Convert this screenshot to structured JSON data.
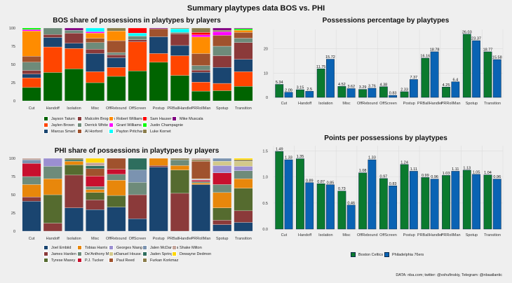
{
  "title": "Summary playtypes data BOS vs. PHI",
  "caption": "DATA: nba.com; twitter: @vshufinskiy, Telegram: @nbaatlantic",
  "chart_data": [
    {
      "id": "bos_share",
      "type": "bar",
      "stacked": true,
      "title": "BOS share of possessions in playtypes by players",
      "xlabel": "",
      "ylabel": "",
      "ylim": [
        0,
        100
      ],
      "yticks": [
        "0",
        "25",
        "50",
        "75",
        "100"
      ],
      "categories": [
        "Cut",
        "Handoff",
        "Isolation",
        "Misc",
        "OffRebound",
        "OffScreen",
        "Postup",
        "PRBallHandler",
        "PRRollMan",
        "Spotup",
        "Transition"
      ],
      "legend": "bottom",
      "series": [
        {
          "name": "Jayson Tatum",
          "color": "#006400",
          "values": [
            18,
            39,
            44,
            25,
            33,
            41,
            53,
            35,
            13,
            14,
            20
          ]
        },
        {
          "name": "Jaylen Brown",
          "color": "#ff4500",
          "values": [
            13,
            35,
            28,
            15,
            12,
            40,
            12,
            27,
            12,
            10,
            20
          ]
        },
        {
          "name": "Marcus Smart",
          "color": "#1a4570",
          "values": [
            5,
            13,
            7,
            25,
            13,
            0,
            23,
            14,
            13,
            22,
            17
          ]
        },
        {
          "name": "Malcolm Brogdon",
          "color": "#8b3a3a",
          "values": [
            5,
            4,
            14,
            6,
            4,
            3,
            0,
            16,
            3,
            16,
            23
          ]
        },
        {
          "name": "Derrick White",
          "color": "#6e8b7a",
          "values": [
            11,
            9,
            4,
            9,
            3,
            5,
            0,
            2,
            6,
            13,
            6
          ]
        },
        {
          "name": "Al Horford",
          "color": "#a0522d",
          "values": [
            8,
            0,
            0,
            6,
            16,
            0,
            11,
            0,
            16,
            15,
            8
          ]
        },
        {
          "name": "Robert Williams III",
          "color": "#ff8c00",
          "values": [
            34,
            0,
            0,
            7,
            13,
            0,
            0,
            0,
            22,
            0,
            3
          ]
        },
        {
          "name": "Grant Williams",
          "color": "#ff00ff",
          "values": [
            2,
            0,
            0,
            2,
            0,
            0,
            0,
            0,
            3,
            5,
            0
          ]
        },
        {
          "name": "Payton Pritchard",
          "color": "#00ffff",
          "values": [
            0,
            0,
            0,
            5,
            0,
            4,
            0,
            5,
            0,
            0,
            0
          ]
        },
        {
          "name": "Sam Hauser",
          "color": "#ff0000",
          "values": [
            0,
            0,
            0,
            0,
            0,
            7,
            0,
            0,
            3,
            0,
            0
          ]
        },
        {
          "name": "Justin Champagnie",
          "color": "#00ff00",
          "values": [
            2,
            0,
            0,
            0,
            0,
            0,
            0,
            0,
            0,
            0,
            2
          ]
        },
        {
          "name": "Luke Kornet",
          "color": "#8b7d4a",
          "values": [
            0,
            0,
            0,
            0,
            4,
            0,
            0,
            1,
            6,
            2,
            0
          ]
        },
        {
          "name": "Mike Muscala",
          "color": "#800080",
          "values": [
            0,
            0,
            3,
            0,
            0,
            0,
            1,
            0,
            0,
            3,
            1
          ]
        }
      ]
    },
    {
      "id": "phi_share",
      "type": "bar",
      "stacked": true,
      "title": "PHI share of possessions in playtypes by players",
      "xlabel": "",
      "ylabel": "",
      "ylim": [
        0,
        100
      ],
      "yticks": [
        "0",
        "25",
        "50",
        "75",
        "100"
      ],
      "categories": [
        "Cut",
        "Handoff",
        "Isolation",
        "Misc",
        "OffRebound",
        "OffScreen",
        "Postup",
        "PRBallHandler",
        "PRRollMan",
        "Spotup",
        "Transition"
      ],
      "legend": "bottom",
      "series": [
        {
          "name": "Joel Embiid",
          "color": "#1a4570",
          "values": [
            41,
            0,
            32,
            29,
            33,
            17,
            88,
            0,
            64,
            9,
            12
          ]
        },
        {
          "name": "James Harden",
          "color": "#8b3a3a",
          "values": [
            6,
            11,
            45,
            13,
            0,
            33,
            2,
            52,
            0,
            6,
            16
          ]
        },
        {
          "name": "Tyrese Maxey",
          "color": "#556b2f",
          "values": [
            0,
            39,
            14,
            10,
            16,
            0,
            0,
            32,
            0,
            17,
            31
          ]
        },
        {
          "name": "Tobias Harris",
          "color": "#e8870b",
          "values": [
            17,
            22,
            5,
            4,
            21,
            0,
            10,
            6,
            2,
            21,
            13
          ]
        },
        {
          "name": "De'Anthony Melton",
          "color": "#6e8b7a",
          "values": [
            11,
            17,
            0,
            4,
            8,
            17,
            0,
            8,
            2,
            11,
            11
          ]
        },
        {
          "name": "P.J. Tucker",
          "color": "#c8102e",
          "values": [
            18,
            0,
            0,
            14,
            7,
            0,
            0,
            0,
            2,
            16,
            0
          ]
        },
        {
          "name": "Georges Niang",
          "color": "#9b8fd1",
          "values": [
            0,
            11,
            0,
            0,
            0,
            0,
            0,
            0,
            1,
            10,
            6
          ]
        },
        {
          "name": "Danuel House Jr.",
          "color": "#d3c98a",
          "values": [
            0,
            0,
            0,
            0,
            0,
            0,
            0,
            0,
            1,
            6,
            7
          ]
        },
        {
          "name": "Paul Reed",
          "color": "#a0522d",
          "values": [
            0,
            0,
            0,
            10,
            15,
            0,
            0,
            0,
            24,
            0,
            0
          ]
        },
        {
          "name": "Jalen McDaniels",
          "color": "#7b93b0",
          "values": [
            5,
            0,
            0,
            0,
            0,
            17,
            0,
            0,
            0,
            4,
            0
          ]
        },
        {
          "name": "Jaden Springer",
          "color": "#2e6e5e",
          "values": [
            0,
            0,
            2,
            4,
            0,
            16,
            0,
            0,
            0,
            0,
            0
          ]
        },
        {
          "name": "Furkan Korkmaz",
          "color": "#8b7d4a",
          "values": [
            0,
            0,
            2,
            0,
            0,
            0,
            0,
            2,
            2,
            0,
            2
          ]
        },
        {
          "name": "Shake Milton",
          "color": "#c4a49a",
          "values": [
            2,
            0,
            0,
            4,
            0,
            0,
            0,
            0,
            2,
            0,
            0
          ]
        },
        {
          "name": "Dewayne Dedmon",
          "color": "#ffd700",
          "values": [
            0,
            0,
            0,
            6,
            0,
            0,
            0,
            0,
            0,
            0,
            2
          ]
        }
      ]
    },
    {
      "id": "poss_pct",
      "type": "bar",
      "title": "Possessions percentage by playtypes",
      "xlabel": "",
      "ylabel": "",
      "ylim": [
        0,
        28
      ],
      "yticks": [
        "0",
        "10",
        "20"
      ],
      "grid": true,
      "categories": [
        "Cut",
        "Handoff",
        "Isolation",
        "Misc",
        "OffRebound",
        "OffScreen",
        "Postup",
        "PRBallHandler",
        "PRRollMan",
        "Spotup",
        "Transition"
      ],
      "series": [
        {
          "name": "Boston Celtics",
          "color": "#0b7a2e",
          "values": [
            5.34,
            3.15,
            11.75,
            4.52,
            3.29,
            4.38,
            2.33,
            16.16,
            4.25,
            26.03,
            18.77
          ]
        },
        {
          "name": "Philadelphia 76ers",
          "color": "#0a63b4",
          "values": [
            2.09,
            2.5,
            15.72,
            3.62,
            3.76,
            0.83,
            7.37,
            18.78,
            6.4,
            23.37,
            15.58
          ]
        }
      ]
    },
    {
      "id": "ppp",
      "type": "bar",
      "title": "Points per possessions by playtypes",
      "xlabel": "",
      "ylabel": "",
      "ylim": [
        0,
        1.6
      ],
      "yticks": [
        "0.0",
        "0.5",
        "1.0",
        "1.5"
      ],
      "grid": true,
      "categories": [
        "Cut",
        "Handoff",
        "Isolation",
        "Misc",
        "OffRebound",
        "OffScreen",
        "Postup",
        "PRBallHandler",
        "PRRollMan",
        "Spotup",
        "Transition"
      ],
      "legend": "bottom",
      "series": [
        {
          "name": "Boston Celtics",
          "color": "#0b7a2e",
          "values": [
            1.49,
            1.35,
            0.87,
            0.73,
            1.08,
            0.97,
            1.24,
            0.99,
            1.03,
            1.13,
            1.04
          ]
        },
        {
          "name": "Philadelphia 76ers",
          "color": "#0a63b4",
          "values": [
            1.33,
            0.89,
            0.85,
            0.46,
            1.33,
            0.83,
            1.11,
            0.96,
            1.11,
            1.05,
            0.96
          ]
        }
      ]
    }
  ]
}
